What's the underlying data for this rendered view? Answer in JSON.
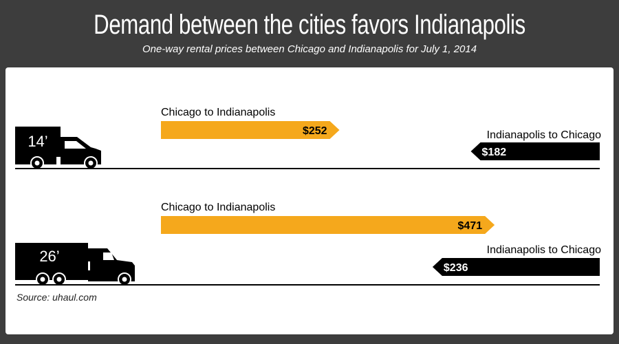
{
  "header": {
    "title": "Demand between the cities favors Indianapolis",
    "subtitle": "One-way rental prices between Chicago and Indianapolis for July 1, 2014"
  },
  "footer": {
    "source": "Source: uhaul.com"
  },
  "colors": {
    "background": "#3d3d3d",
    "panel": "#ffffff",
    "chicago_to_indianapolis": "#f5a81c",
    "indianapolis_to_chicago": "#000000"
  },
  "trucks": [
    {
      "label": "14’",
      "icon": "small-box-truck-icon"
    },
    {
      "label": "26’",
      "icon": "large-box-truck-icon"
    }
  ],
  "chart_data": {
    "type": "bar",
    "title": "Demand between the cities favors Indianapolis",
    "subtitle": "One-way rental prices between Chicago and Indianapolis for July 1, 2014",
    "categories": [
      "14’",
      "26’"
    ],
    "series": [
      {
        "name": "Chicago to Indianapolis",
        "values": [
          252,
          471
        ],
        "labels": [
          "$252",
          "$471"
        ],
        "color": "#f5a81c",
        "direction": "right"
      },
      {
        "name": "Indianapolis to Chicago",
        "values": [
          182,
          236
        ],
        "labels": [
          "$182",
          "$236"
        ],
        "color": "#000000",
        "direction": "left"
      }
    ],
    "xlabel": "",
    "ylabel": "",
    "grid": false,
    "source": "Source: uhaul.com"
  }
}
